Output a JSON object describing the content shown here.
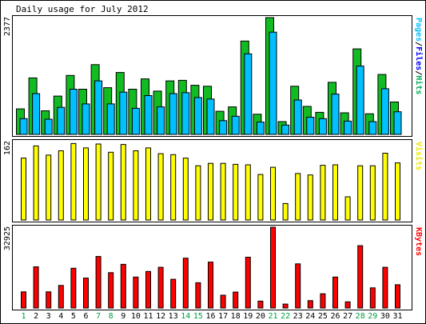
{
  "chart_data": {
    "type": "bar",
    "title": "Daily usage for July 2012",
    "categories": [
      "1",
      "2",
      "3",
      "4",
      "5",
      "6",
      "7",
      "8",
      "9",
      "10",
      "11",
      "12",
      "13",
      "14",
      "15",
      "16",
      "17",
      "18",
      "19",
      "20",
      "21",
      "22",
      "23",
      "24",
      "25",
      "26",
      "27",
      "28",
      "29",
      "30",
      "31"
    ],
    "weekend_days": [
      "1",
      "7",
      "8",
      "14",
      "15",
      "21",
      "22",
      "28",
      "29"
    ],
    "panels": [
      {
        "id": "hits-files",
        "ymax_label": "2377",
        "ymax": 2377,
        "legend": [
          {
            "text": "Pages",
            "color": "#00c0ff"
          },
          {
            "text": "/",
            "color": "#000000"
          },
          {
            "text": "Files",
            "color": "#0000ff"
          },
          {
            "text": "/",
            "color": "#000000"
          },
          {
            "text": "Hits",
            "color": "#00aa55"
          }
        ],
        "series": [
          {
            "name": "Hits",
            "color": "#11bb22",
            "values": [
              520,
              1150,
              480,
              780,
              1200,
              920,
              1420,
              950,
              1260,
              920,
              1130,
              880,
              1090,
              1100,
              1000,
              980,
              470,
              560,
              1900,
              410,
              2377,
              260,
              980,
              570,
              450,
              1060,
              440,
              1740,
              420,
              1220,
              660
            ]
          },
          {
            "name": "Files",
            "color": "#00c0ff",
            "values": [
              320,
              830,
              310,
              550,
              920,
              620,
              1090,
              620,
              860,
              530,
              790,
              560,
              830,
              850,
              750,
              720,
              280,
              370,
              1640,
              250,
              2080,
              190,
              700,
              350,
              320,
              820,
              270,
              1390,
              260,
              930,
              460
            ]
          }
        ]
      },
      {
        "id": "visits",
        "ymax_label": "162",
        "ymax": 162,
        "legend": [
          {
            "text": "Visits",
            "color": "#e8e800"
          }
        ],
        "series": [
          {
            "name": "Visits",
            "color": "#ffff00",
            "values": [
              128,
              153,
              134,
              143,
              158,
              149,
              157,
              140,
              156,
              143,
              149,
              137,
              135,
              128,
              112,
              117,
              117,
              115,
              114,
              94,
              109,
              34,
              96,
              93,
              113,
              114,
              48,
              112,
              112,
              138,
              118
            ]
          }
        ]
      },
      {
        "id": "kbytes",
        "ymax_label": "32925",
        "ymax": 32925,
        "legend": [
          {
            "text": "KBytes",
            "color": "#ff0000"
          }
        ],
        "series": [
          {
            "name": "KBytes",
            "color": "#ff0000",
            "values": [
              6600,
              16800,
              6600,
              9200,
              16200,
              12200,
              21000,
              14400,
              17800,
              12600,
              14900,
              16600,
              11700,
              20300,
              10300,
              18700,
              5200,
              6500,
              20700,
              2800,
              32925,
              1600,
              18000,
              3000,
              5800,
              12600,
              2500,
              25400,
              8200,
              16600,
              9500
            ]
          }
        ]
      }
    ]
  }
}
